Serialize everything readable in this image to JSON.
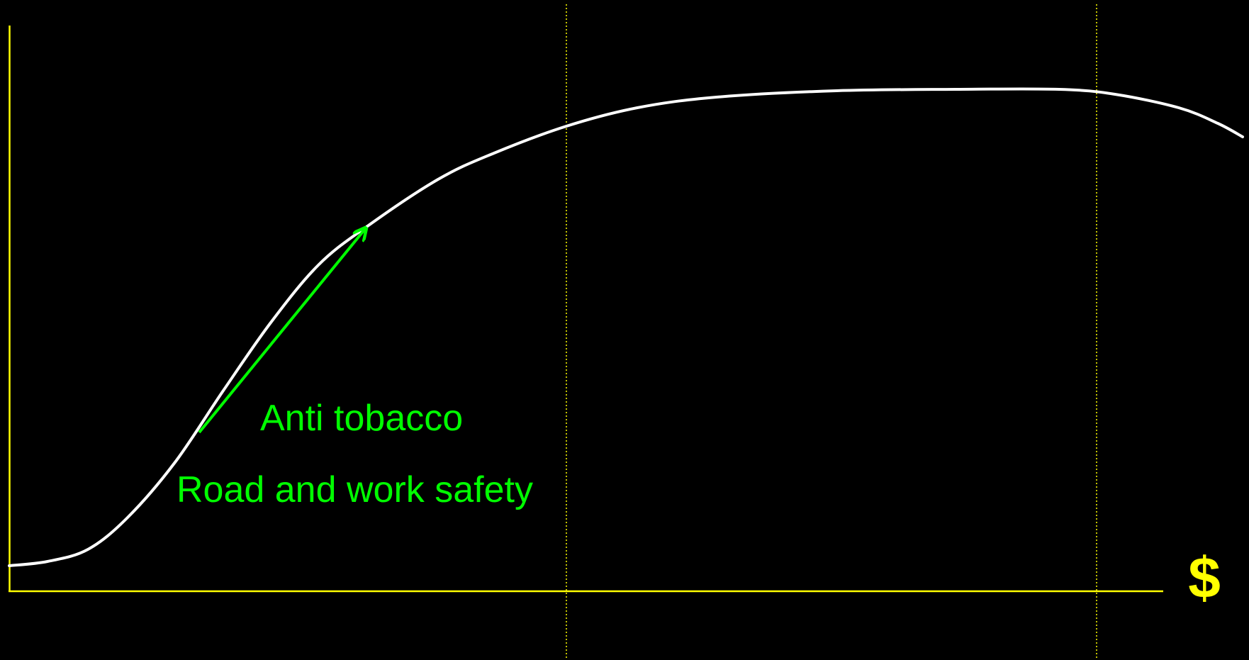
{
  "labels": {
    "anti_tobacco": "Anti tobacco",
    "road_safety": "Road and work safety",
    "x_axis": "$"
  }
}
